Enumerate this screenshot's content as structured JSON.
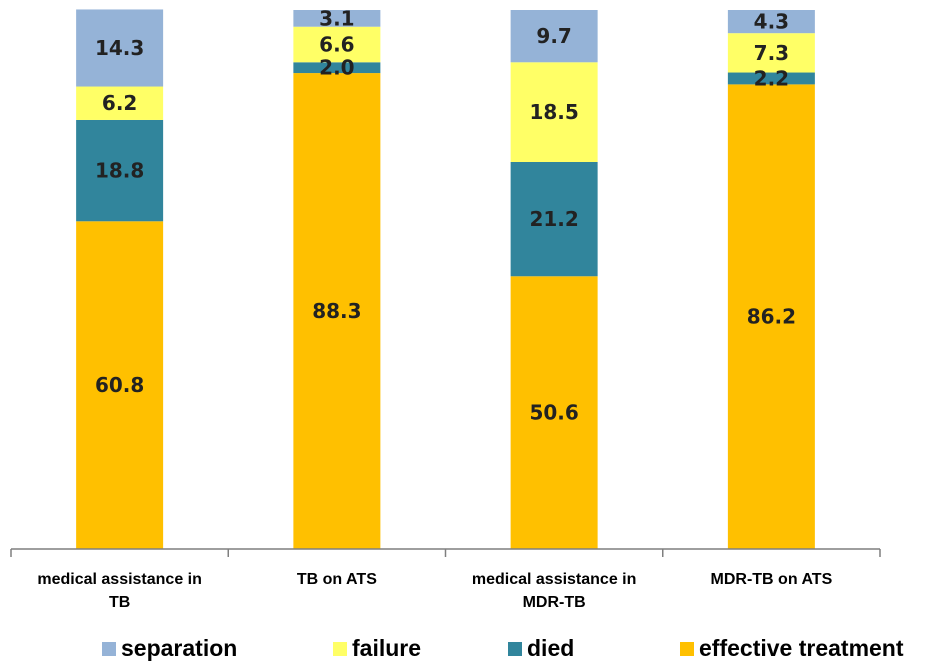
{
  "chart_data": {
    "type": "bar",
    "stacked": true,
    "title": "",
    "xlabel": "",
    "ylabel": "",
    "ylim": [
      0,
      100
    ],
    "grid": false,
    "legend_position": "bottom",
    "categories": [
      [
        "medical assistance in",
        "TB"
      ],
      [
        "TB on ATS"
      ],
      [
        "medical assistance in",
        "MDR-TB"
      ],
      [
        "MDR-TB on ATS"
      ]
    ],
    "series": [
      {
        "name": "effective treatment",
        "color": "#FFC000",
        "values": [
          60.8,
          88.3,
          50.6,
          86.2
        ],
        "labels": [
          "60.8",
          "88.3",
          "50.6",
          "86.2"
        ]
      },
      {
        "name": "died",
        "color": "#31859C",
        "values": [
          18.8,
          2.0,
          21.2,
          2.2
        ],
        "labels": [
          "18.8",
          "2.0",
          "21.2",
          "2.2"
        ]
      },
      {
        "name": "failure",
        "color": "#FFFF66",
        "values": [
          6.2,
          6.6,
          18.5,
          7.3
        ],
        "labels": [
          "6.2",
          "6.6",
          "18.5",
          "7.3"
        ]
      },
      {
        "name": "separation",
        "color": "#95B3D7",
        "values": [
          14.3,
          3.1,
          9.7,
          4.3
        ],
        "labels": [
          "14.3",
          "3.1",
          "9.7",
          "4.3"
        ]
      }
    ],
    "legend_order": [
      "separation",
      "failure",
      "died",
      "effective treatment"
    ]
  }
}
